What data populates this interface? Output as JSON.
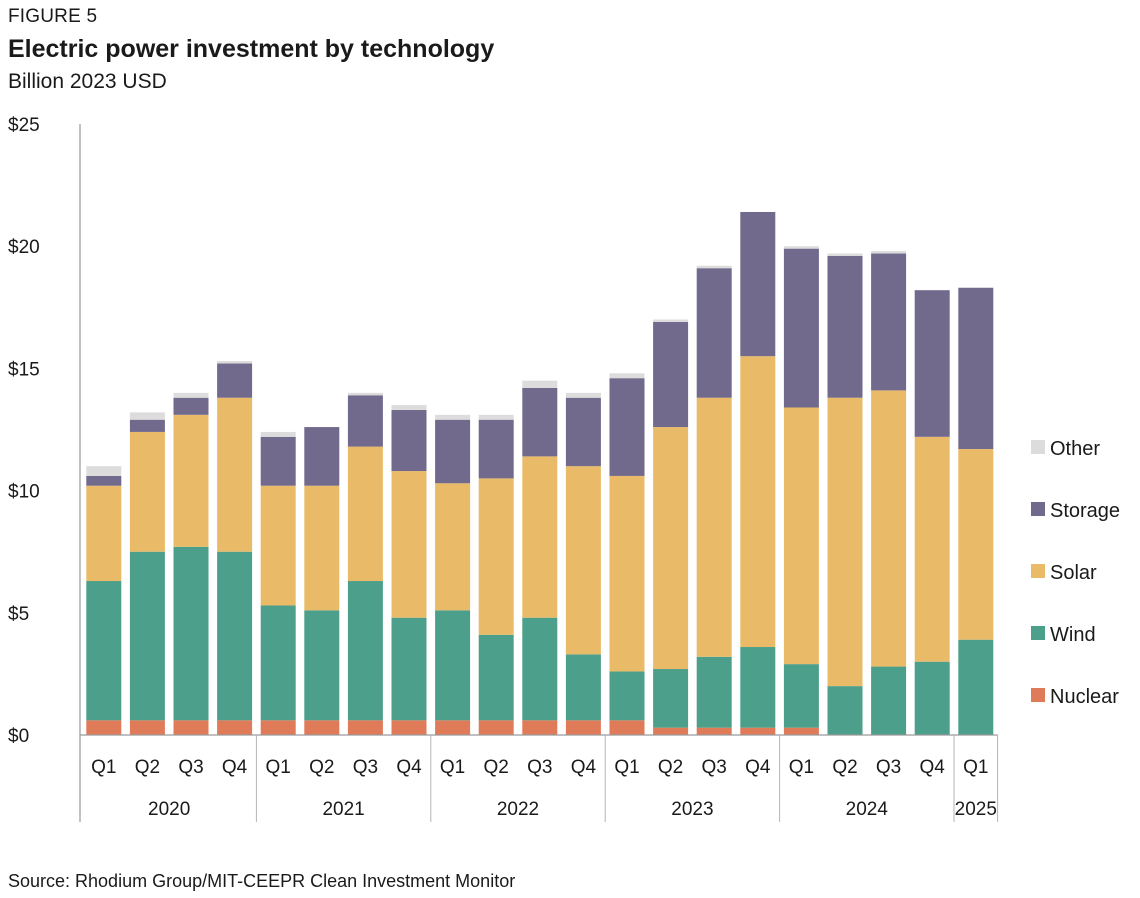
{
  "header": {
    "figure_label": "FIGURE 5",
    "title": "Electric power investment by technology",
    "subtitle": "Billion 2023 USD"
  },
  "source": "Source: Rhodium Group/MIT-CEEPR Clean Investment Monitor",
  "chart_data": {
    "type": "bar",
    "stacked": true,
    "title": "Electric power investment by technology",
    "subtitle": "Billion 2023 USD",
    "ylim": [
      0,
      25
    ],
    "y_ticks": [
      0,
      5,
      10,
      15,
      20,
      25
    ],
    "y_tick_labels": [
      "$0",
      "$5",
      "$10",
      "$15",
      "$20",
      "$25"
    ],
    "grid": false,
    "legend_position": "right",
    "categories": [
      "Q1",
      "Q2",
      "Q3",
      "Q4",
      "Q1",
      "Q2",
      "Q3",
      "Q4",
      "Q1",
      "Q2",
      "Q3",
      "Q4",
      "Q1",
      "Q2",
      "Q3",
      "Q4",
      "Q1",
      "Q2",
      "Q3",
      "Q4",
      "Q1"
    ],
    "year_groups": [
      {
        "label": "2020",
        "count": 4
      },
      {
        "label": "2021",
        "count": 4
      },
      {
        "label": "2022",
        "count": 4
      },
      {
        "label": "2023",
        "count": 4
      },
      {
        "label": "2024",
        "count": 4
      },
      {
        "label": "2025",
        "count": 1
      }
    ],
    "series": [
      {
        "name": "Nuclear",
        "color": "#E07B5A",
        "values": [
          0.6,
          0.6,
          0.6,
          0.6,
          0.6,
          0.6,
          0.6,
          0.6,
          0.6,
          0.6,
          0.6,
          0.6,
          0.6,
          0.3,
          0.3,
          0.3,
          0.3,
          0.0,
          0.0,
          0.0,
          0.0
        ]
      },
      {
        "name": "Wind",
        "color": "#4C9F8A",
        "values": [
          5.7,
          6.9,
          7.1,
          6.9,
          4.7,
          4.5,
          5.7,
          4.2,
          4.5,
          3.5,
          4.2,
          2.7,
          2.0,
          2.4,
          2.9,
          3.3,
          2.6,
          2.0,
          2.8,
          3.0,
          3.9
        ]
      },
      {
        "name": "Solar",
        "color": "#E9BB68",
        "values": [
          3.9,
          4.9,
          5.4,
          6.3,
          4.9,
          5.1,
          5.5,
          6.0,
          5.2,
          6.4,
          6.6,
          7.7,
          8.0,
          9.9,
          10.6,
          11.9,
          10.5,
          11.8,
          11.3,
          9.2,
          7.8
        ]
      },
      {
        "name": "Storage",
        "color": "#726A8D",
        "values": [
          0.4,
          0.5,
          0.7,
          1.4,
          2.0,
          2.4,
          2.1,
          2.5,
          2.6,
          2.4,
          2.8,
          2.8,
          4.0,
          4.3,
          5.3,
          5.9,
          6.5,
          5.8,
          5.6,
          6.0,
          6.6
        ]
      },
      {
        "name": "Other",
        "color": "#DCDCDC",
        "values": [
          0.4,
          0.3,
          0.2,
          0.1,
          0.2,
          0.0,
          0.1,
          0.2,
          0.2,
          0.2,
          0.3,
          0.2,
          0.2,
          0.1,
          0.1,
          0.0,
          0.1,
          0.1,
          0.1,
          0.0,
          0.0
        ]
      }
    ],
    "legend_order": [
      "Other",
      "Storage",
      "Solar",
      "Wind",
      "Nuclear"
    ]
  }
}
